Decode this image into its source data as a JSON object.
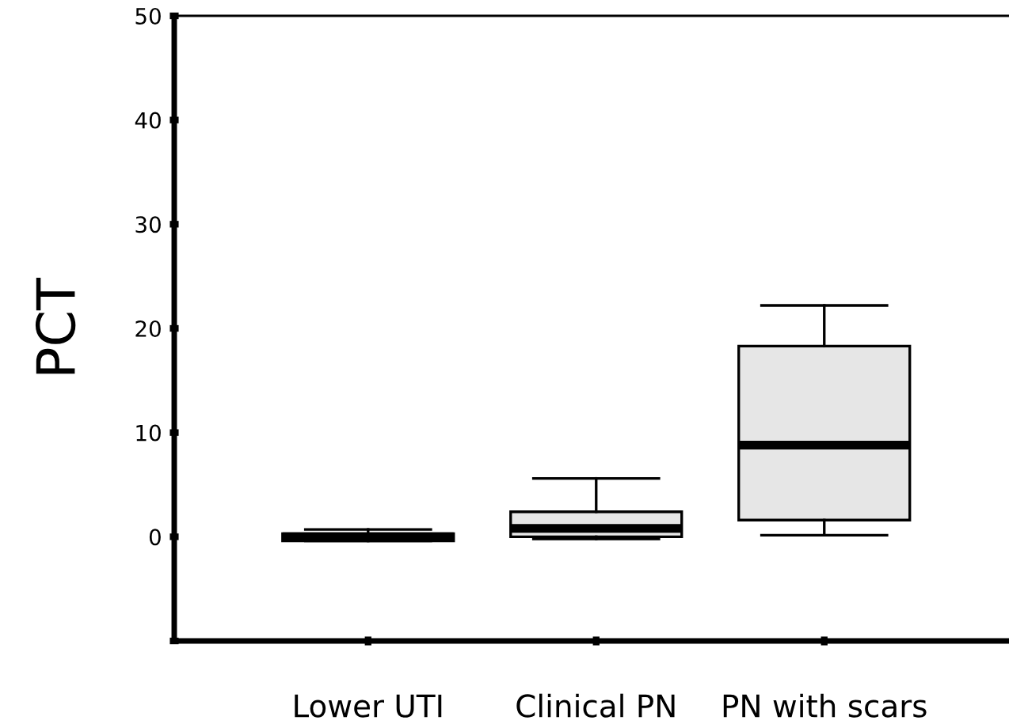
{
  "chart_data": {
    "type": "box",
    "ylabel": "PCT",
    "categories": [
      "Lower UTI",
      "Clinical PN",
      "PN with scars"
    ],
    "boxes": [
      {
        "low": -0.4,
        "q1": -0.4,
        "median": 0,
        "q3": 0.3,
        "high": 0.7
      },
      {
        "low": -0.2,
        "q1": 0.0,
        "median": 0.8,
        "q3": 2.4,
        "high": 5.6
      },
      {
        "low": 0.15,
        "q1": 1.6,
        "median": 8.8,
        "q3": 18.3,
        "high": 22.2
      }
    ],
    "colors": [
      "#f8f8f8",
      "#e6e6e6",
      "#e6e6e6"
    ],
    "ylim": [
      -10,
      50
    ],
    "yticks": [
      {
        "value": -10,
        "label": null
      },
      0,
      10,
      20,
      30,
      40,
      50
    ],
    "grid": false
  }
}
